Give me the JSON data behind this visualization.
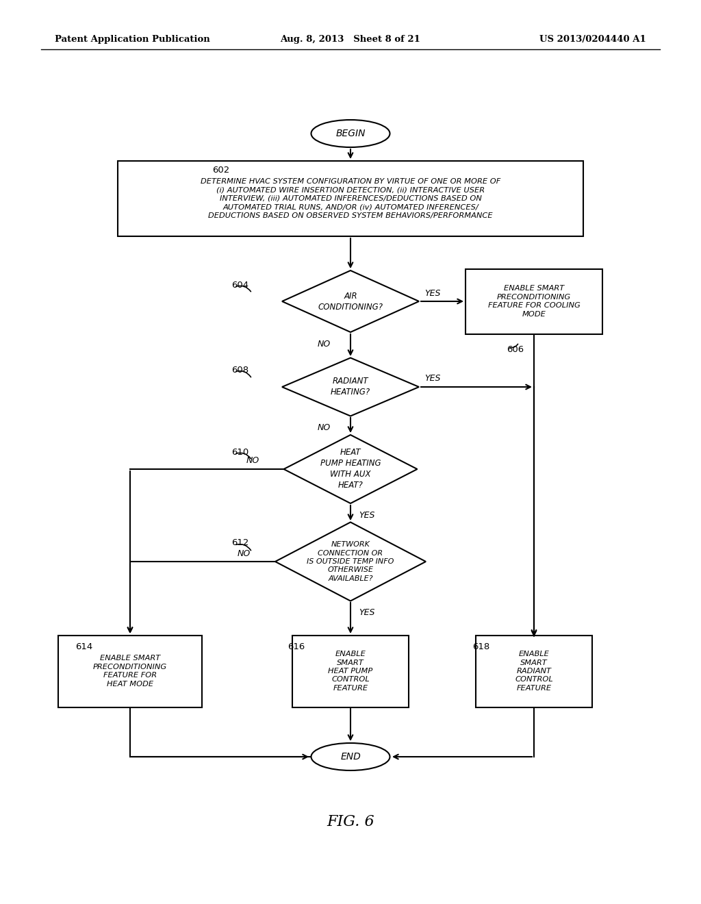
{
  "title_left": "Patent Application Publication",
  "title_mid": "Aug. 8, 2013   Sheet 8 of 21",
  "title_right": "US 2013/0204440 A1",
  "fig_label": "FIG. 6",
  "background_color": "#ffffff",
  "line_color": "#000000",
  "text_color": "#000000"
}
